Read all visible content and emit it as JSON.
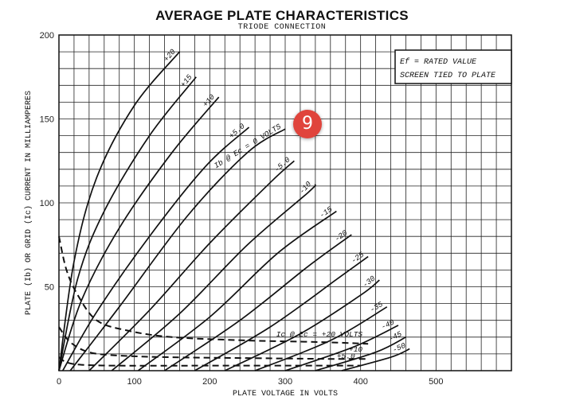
{
  "chart_data": {
    "type": "line",
    "title": "AVERAGE PLATE CHARACTERISTICS",
    "subtitle": "TRIODE CONNECTION",
    "xlabel": "PLATE VOLTAGE IN VOLTS",
    "ylabel": "PLATE (Ib) OR GRID (Ic) CURRENT IN MILLIAMPERES",
    "xlim": [
      0,
      600
    ],
    "ylim": [
      0,
      200
    ],
    "x_ticks": [
      "0",
      "100",
      "200",
      "300",
      "400",
      "500"
    ],
    "y_ticks": [
      "50",
      "100",
      "150",
      "200"
    ],
    "grid": true,
    "note_lines": [
      "Ef = RATED VALUE",
      "SCREEN TIED TO PLATE"
    ],
    "series": [
      {
        "name": "+20",
        "label": "+20",
        "points": [
          [
            0,
            0
          ],
          [
            20,
            65
          ],
          [
            50,
            115
          ],
          [
            100,
            158
          ],
          [
            160,
            190
          ]
        ]
      },
      {
        "name": "+15",
        "label": "+15",
        "points": [
          [
            0,
            0
          ],
          [
            25,
            55
          ],
          [
            60,
            95
          ],
          [
            120,
            140
          ],
          [
            182,
            175
          ]
        ]
      },
      {
        "name": "+10",
        "label": "+10",
        "points": [
          [
            0,
            0
          ],
          [
            30,
            42
          ],
          [
            80,
            85
          ],
          [
            150,
            130
          ],
          [
            212,
            163
          ]
        ]
      },
      {
        "name": "+5.0",
        "label": "+5.0",
        "points": [
          [
            5,
            0
          ],
          [
            50,
            35
          ],
          [
            120,
            80
          ],
          [
            195,
            122
          ],
          [
            252,
            145
          ]
        ]
      },
      {
        "name": "Ib @ Ec = 0 VOLTS",
        "label": "Ib @ Ec = 0 VOLTS",
        "points": [
          [
            15,
            0
          ],
          [
            80,
            38
          ],
          [
            170,
            92
          ],
          [
            250,
            130
          ],
          [
            300,
            144
          ]
        ]
      },
      {
        "name": "-5.0",
        "label": "-5.0",
        "points": [
          [
            40,
            0
          ],
          [
            120,
            36
          ],
          [
            200,
            76
          ],
          [
            280,
            112
          ],
          [
            312,
            125
          ]
        ]
      },
      {
        "name": "-10",
        "label": "-10",
        "points": [
          [
            70,
            0
          ],
          [
            160,
            34
          ],
          [
            250,
            75
          ],
          [
            330,
            106
          ],
          [
            340,
            111
          ]
        ]
      },
      {
        "name": "-15",
        "label": "-15",
        "points": [
          [
            105,
            0
          ],
          [
            200,
            32
          ],
          [
            290,
            70
          ],
          [
            368,
            95
          ]
        ]
      },
      {
        "name": "-20",
        "label": "-20",
        "points": [
          [
            140,
            0
          ],
          [
            240,
            30
          ],
          [
            330,
            62
          ],
          [
            388,
            81
          ]
        ]
      },
      {
        "name": "-25",
        "label": "-25",
        "points": [
          [
            180,
            0
          ],
          [
            280,
            26
          ],
          [
            370,
            55
          ],
          [
            410,
            68
          ]
        ]
      },
      {
        "name": "-30",
        "label": "-30",
        "points": [
          [
            220,
            0
          ],
          [
            320,
            22
          ],
          [
            400,
            45
          ],
          [
            425,
            54
          ]
        ]
      },
      {
        "name": "-35",
        "label": "-35",
        "points": [
          [
            260,
            0
          ],
          [
            360,
            18
          ],
          [
            435,
            38
          ]
        ]
      },
      {
        "name": "-40",
        "label": "-40",
        "points": [
          [
            300,
            0
          ],
          [
            390,
            14
          ],
          [
            450,
            27
          ]
        ]
      },
      {
        "name": "-45",
        "label": "-45",
        "points": [
          [
            340,
            0
          ],
          [
            420,
            11
          ],
          [
            460,
            20
          ]
        ]
      },
      {
        "name": "-50",
        "label": "-50",
        "points": [
          [
            375,
            0
          ],
          [
            440,
            8
          ],
          [
            465,
            13
          ]
        ]
      },
      {
        "name": "Ic @ Ec = +20 VOLTS",
        "label": "Ic @ Ec = +20 VOLTS",
        "dashed": true,
        "points": [
          [
            0,
            80
          ],
          [
            10,
            60
          ],
          [
            25,
            45
          ],
          [
            50,
            30
          ],
          [
            90,
            24
          ],
          [
            150,
            20
          ],
          [
            250,
            18
          ],
          [
            350,
            17
          ],
          [
            410,
            16
          ]
        ]
      },
      {
        "name": "Ic +10",
        "label": "+10",
        "dashed": true,
        "points": [
          [
            0,
            26
          ],
          [
            15,
            17
          ],
          [
            40,
            11
          ],
          [
            80,
            9
          ],
          [
            150,
            8
          ],
          [
            250,
            7.5
          ],
          [
            360,
            7
          ],
          [
            410,
            7
          ]
        ]
      },
      {
        "name": "Ic +5.0",
        "label": "+5.0",
        "dashed": true,
        "points": [
          [
            0,
            8
          ],
          [
            10,
            5
          ],
          [
            30,
            3.5
          ],
          [
            80,
            3
          ],
          [
            200,
            3
          ],
          [
            360,
            3
          ],
          [
            400,
            3
          ]
        ]
      }
    ]
  },
  "badge": {
    "text": "9",
    "color": "#e0443c"
  }
}
